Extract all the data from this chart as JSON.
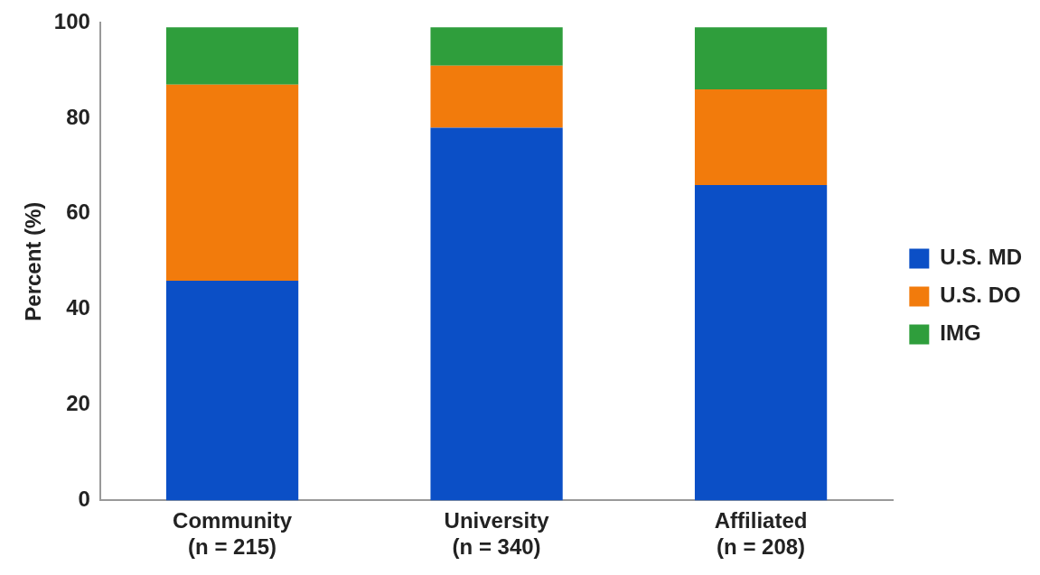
{
  "chart_data": {
    "type": "bar",
    "stacked": true,
    "ylabel": "Percent (%)",
    "categories": [
      "Community\n(n = 215)",
      "University\n(n = 340)",
      "Affiliated\n(n = 208)"
    ],
    "series": [
      {
        "name": "U.S. MD",
        "color": "#0b4fc6",
        "values": [
          46,
          78,
          66
        ]
      },
      {
        "name": "U.S. DO",
        "color": "#f27b0c",
        "values": [
          41,
          13,
          20
        ]
      },
      {
        "name": "IMG",
        "color": "#2f9e3c",
        "values": [
          12,
          8,
          13
        ]
      }
    ],
    "ylim": [
      0,
      100
    ],
    "yticks": [
      0,
      20,
      40,
      60,
      80,
      100
    ],
    "grid": false,
    "legend": "right"
  }
}
